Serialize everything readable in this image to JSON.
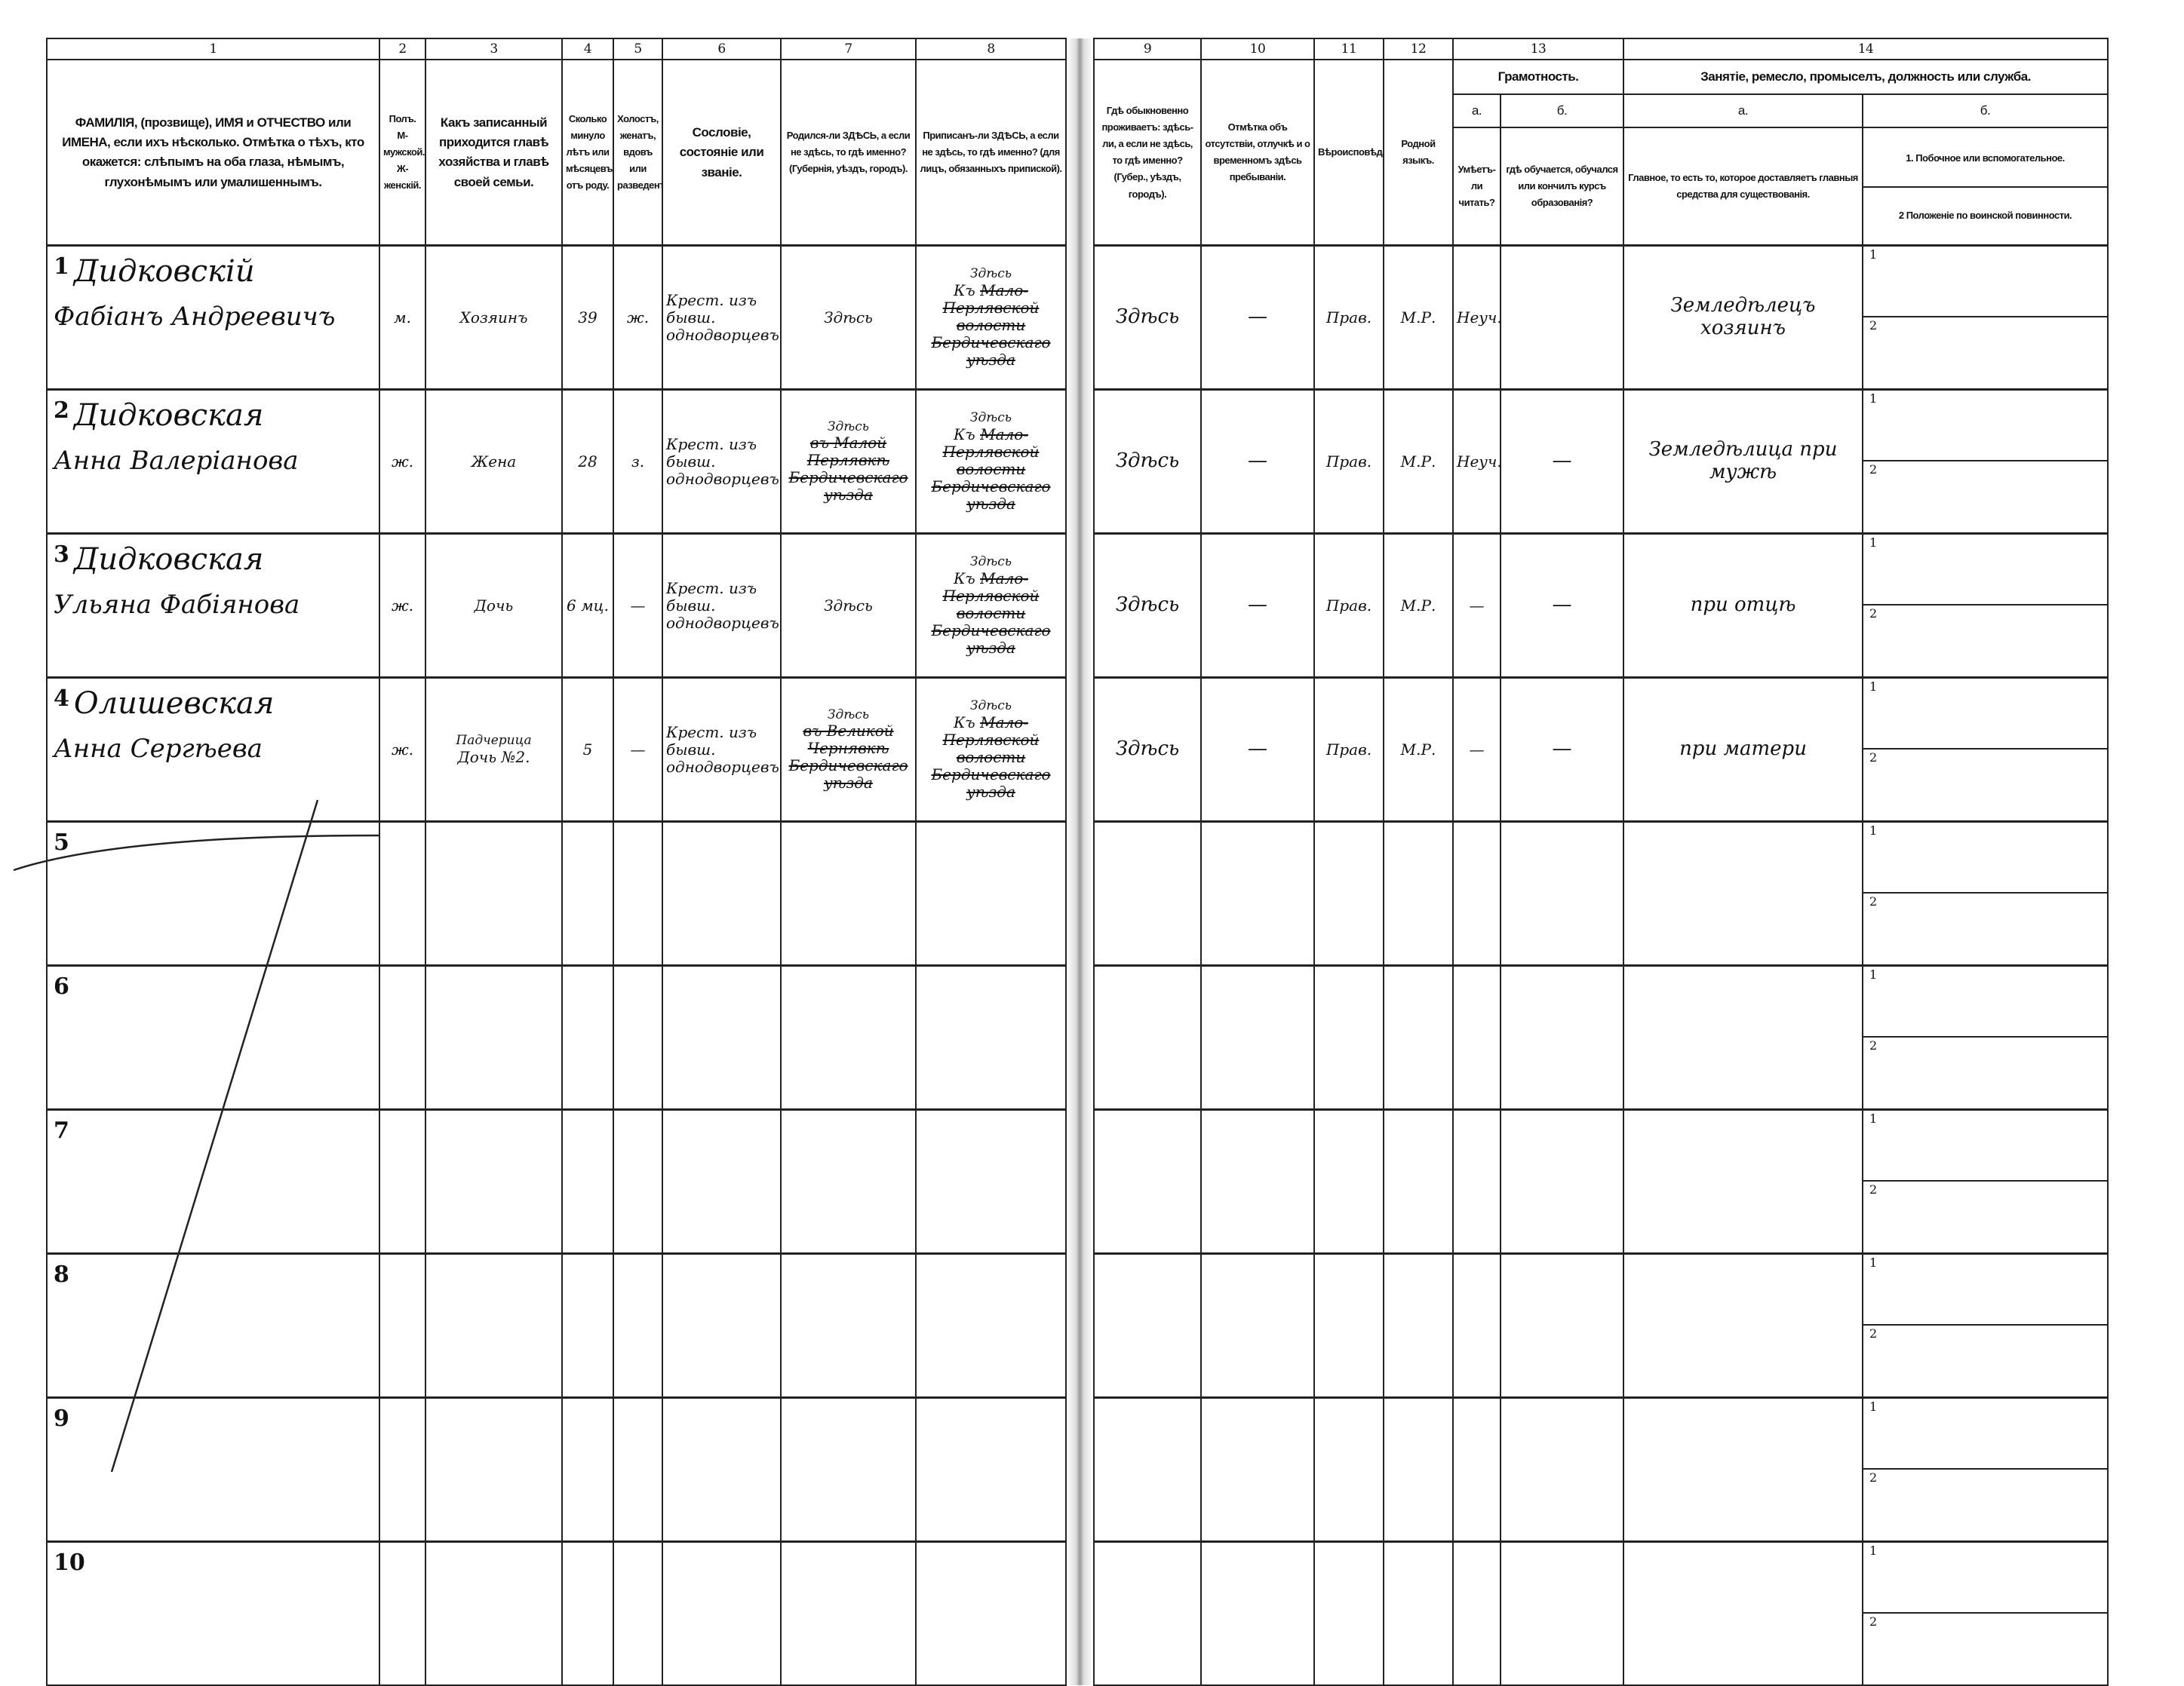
{
  "header": {
    "col_numbers": [
      "1",
      "2",
      "3",
      "4",
      "5",
      "6",
      "7",
      "8",
      "9",
      "10",
      "11",
      "12",
      "13",
      "14"
    ],
    "c1": "ФАМИЛІЯ, (прозвище), ИМЯ и ОТЧЕСТВО или ИМЕНА, если ихъ нѣсколько. Отмѣтка о тѣхъ, кто окажется: слѣпымъ на оба глаза, нѣмымъ, глухонѣмымъ или умалишеннымъ.",
    "c2": "Полъ. М-мужской. Ж-женскій.",
    "c3": "Какъ записанный приходится главѣ хозяйства и главѣ своей семьи.",
    "c4": "Сколько минуло лѣтъ или мѣсяцевъ отъ роду.",
    "c5": "Холостъ, женатъ, вдовъ или разведенъ.",
    "c6": "Сословіе, состояніе или званіе.",
    "c7": "Родился-ли ЗДѢСЬ, а если не здѣсь, то гдѣ именно? (Губернія, уѣздъ, городъ).",
    "c8": "Приписанъ-ли ЗДѢСЬ, а если не здѣсь, то гдѣ именно? (для лицъ, обязанныхъ припиской).",
    "c9": "Гдѣ обыкновенно проживаетъ: здѣсь-ли, а если не здѣсь, то гдѣ именно? (Губер., уѣздъ, городъ).",
    "c10": "Отмѣтка объ отсутствіи, отлучкѣ и о временномъ здѣсь пребываніи.",
    "c11": "Вѣроисповѣданіе.",
    "c12": "Родной языкъ.",
    "c13_title": "Грамотность.",
    "c13a_letter": "а.",
    "c13b_letter": "б.",
    "c13a": "Умѣетъ-ли читать?",
    "c13b": "гдѣ обучается, обучался или кончилъ курсъ образованія?",
    "c14_title": "Занятіе, ремесло, промыселъ, должность или служба.",
    "c14a_letter": "а.",
    "c14b_letter": "б.",
    "c14a": "Главное, то есть то, которое доставляетъ главныя средства для существованія.",
    "c14b_1": "1. Побочное или вспомогательное.",
    "c14b_2": "2 Положеніе по воинской повинности."
  },
  "sub_labels": [
    "1",
    "2"
  ],
  "rows": [
    {
      "num": "1",
      "surname": "Дидковскій",
      "given": "Фабіанъ Андреевичъ",
      "sex": "м.",
      "relation": "Хозяинъ",
      "relation_ins": "",
      "age": "39",
      "marital": "ж.",
      "estate": "Крест. изъ бывш. однодворцевъ",
      "born": "Здѣсь",
      "born_struck": "",
      "born_ins": "",
      "reg_prefix": "Къ",
      "reg_struck": "Мало-Перлявской волости Бердичевскаго уѣзда",
      "reg_ins": "Здѣсь",
      "residence": "Здѣсь",
      "absence": "—",
      "religion": "Прав.",
      "language": "М.Р.",
      "literate": "Неуч.",
      "education": "",
      "occupation": "Земледѣлецъ хозяинъ"
    },
    {
      "num": "2",
      "surname": "Дидковская",
      "given": "Анна Валеріанова",
      "sex": "ж.",
      "relation": "Жена",
      "relation_ins": "",
      "age": "28",
      "marital": "з.",
      "estate": "Крест. изъ бывш. однодворцевъ",
      "born": "",
      "born_struck": "въ Малой Перлявкѣ Бердичевскаго уѣзда",
      "born_ins": "Здѣсь",
      "reg_prefix": "Къ",
      "reg_struck": "Мало-Перлявской волости Бердичевскаго уѣзда",
      "reg_ins": "Здѣсь",
      "residence": "Здѣсь",
      "absence": "—",
      "religion": "Прав.",
      "language": "М.Р.",
      "literate": "Неуч.",
      "education": "—",
      "occupation": "Земледѣлица при мужѣ"
    },
    {
      "num": "3",
      "surname": "Дидковская",
      "given": "Ульяна Фабіянова",
      "sex": "ж.",
      "relation": "Дочь",
      "relation_ins": "",
      "age": "6 мц.",
      "marital": "—",
      "estate": "Крест. изъ бывш. однодворцевъ",
      "born": "Здѣсь",
      "born_struck": "",
      "born_ins": "",
      "reg_prefix": "Къ",
      "reg_struck": "Мало-Перлявской волости Бердичевскаго уѣзда",
      "reg_ins": "Здѣсь",
      "residence": "Здѣсь",
      "absence": "—",
      "religion": "Прав.",
      "language": "М.Р.",
      "literate": "—",
      "education": "—",
      "occupation": "при отцѣ"
    },
    {
      "num": "4",
      "surname": "Олишевская",
      "given": "Анна Сергѣева",
      "sex": "ж.",
      "relation": "Дочь №2.",
      "relation_ins": "Падчерица",
      "age": "5",
      "marital": "—",
      "estate": "Крест. изъ бывш. однодворцевъ",
      "born": "",
      "born_struck": "въ Великой Чернявкѣ Бердичевскаго уѣзда",
      "born_ins": "Здѣсь",
      "reg_prefix": "Къ",
      "reg_struck": "Мало-Перлявской волости Бердичевскаго уѣзда",
      "reg_ins": "Здѣсь",
      "residence": "Здѣсь",
      "absence": "—",
      "religion": "Прав.",
      "language": "М.Р.",
      "literate": "—",
      "education": "—",
      "occupation": "при матери"
    },
    {
      "num": "5"
    },
    {
      "num": "6"
    },
    {
      "num": "7"
    },
    {
      "num": "8"
    },
    {
      "num": "9"
    },
    {
      "num": "10"
    }
  ]
}
